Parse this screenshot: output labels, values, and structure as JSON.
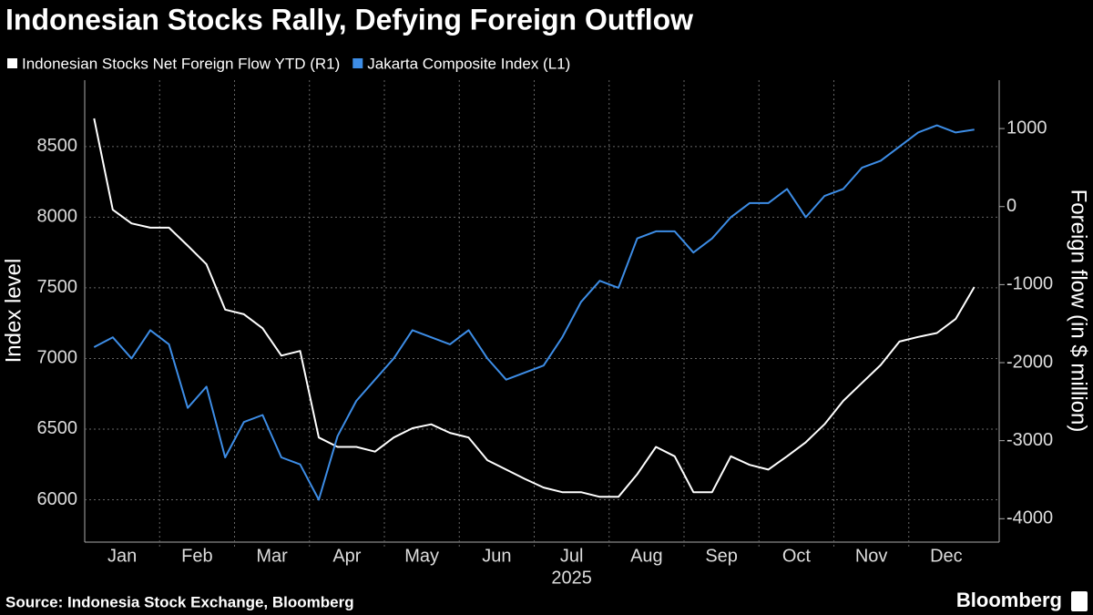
{
  "chart_data": {
    "type": "line",
    "title": "Indonesian Stocks Rally, Defying Foreign Outflow",
    "source": "Source: Indonesia Stock Exchange, Bloomberg",
    "brand": "Bloomberg",
    "ylabel": "Index level",
    "y2label": "Foreign flow (in $ million)",
    "xlabel": "2025",
    "categories": [
      "Jan",
      null,
      null,
      null,
      "Feb",
      null,
      null,
      null,
      "Mar",
      null,
      null,
      null,
      "Apr",
      null,
      null,
      null,
      "May",
      null,
      null,
      null,
      "Jun",
      null,
      null,
      null,
      "Jul",
      null,
      null,
      null,
      "Aug",
      null,
      null,
      null,
      "Sep",
      null,
      null,
      null,
      "Oct",
      null,
      null,
      null,
      "Nov",
      null,
      null,
      null,
      "Dec",
      null,
      null,
      null
    ],
    "series": [
      {
        "name": "Indonesian Stocks Net Foreign Flow YTD (R1)",
        "color": "#ffffff",
        "axis": "y2",
        "values": [
          1130,
          -40,
          -215,
          -270,
          -270,
          -500,
          -740,
          -1320,
          -1380,
          -1560,
          -1910,
          -1850,
          -2960,
          -3080,
          -3080,
          -3140,
          -2960,
          -2840,
          -2790,
          -2900,
          -2960,
          -3250,
          -3370,
          -3490,
          -3600,
          -3660,
          -3660,
          -3720,
          -3720,
          -3430,
          -3080,
          -3200,
          -3660,
          -3660,
          -3200,
          -3310,
          -3370,
          -3200,
          -3020,
          -2790,
          -2490,
          -2260,
          -2030,
          -1730,
          -1670,
          -1620,
          -1440,
          -1030
        ]
      },
      {
        "name": "Jakarta Composite Index (L1)",
        "color": "#3d8de6",
        "values": [
          7080,
          7150,
          7000,
          7200,
          7100,
          6650,
          6800,
          6300,
          6550,
          6600,
          6300,
          6250,
          6000,
          6450,
          6700,
          6850,
          7000,
          7200,
          7150,
          7100,
          7200,
          7000,
          6850,
          6900,
          6950,
          7150,
          7400,
          7550,
          7500,
          7850,
          7900,
          7900,
          7750,
          7850,
          8000,
          8100,
          8100,
          8200,
          8000,
          8150,
          8200,
          8350,
          8400,
          8500,
          8600,
          8650,
          8600,
          8620
        ]
      }
    ],
    "ylim": [
      5700,
      8970
    ],
    "yticks": [
      6000,
      6500,
      7000,
      7500,
      8000,
      8500
    ],
    "y2lim": [
      -4300,
      1620
    ],
    "y2ticks": [
      -4000,
      -3000,
      -2000,
      -1000,
      0,
      1000
    ],
    "grid": true
  }
}
